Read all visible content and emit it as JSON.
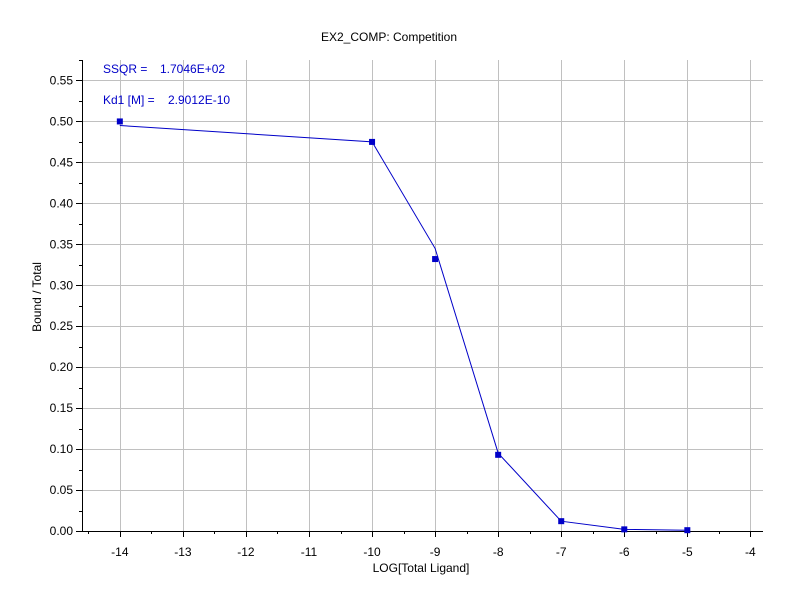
{
  "chart_data": {
    "type": "line",
    "title": "EX2_COMP: Competition",
    "xlabel": "LOG[Total Ligand]",
    "ylabel": "Bound / Total",
    "xlim": [
      -14.6,
      -3.8
    ],
    "ylim": [
      0,
      0.575
    ],
    "x_ticks": [
      -14,
      -13,
      -12,
      -11,
      -10,
      -9,
      -8,
      -7,
      -6,
      -5,
      -4
    ],
    "x_tick_labels": [
      "-14",
      "-13",
      "-12",
      "-11",
      "-10",
      "-9",
      "-8",
      "-7",
      "-6",
      "-5",
      "-4"
    ],
    "y_ticks": [
      0,
      0.05,
      0.1,
      0.15,
      0.2,
      0.25,
      0.3,
      0.35,
      0.4,
      0.45,
      0.5,
      0.55
    ],
    "y_tick_labels": [
      "0.00",
      "0.05",
      "0.10",
      "0.15",
      "0.20",
      "0.25",
      "0.30",
      "0.35",
      "0.40",
      "0.45",
      "0.50",
      "0.55"
    ],
    "grid": true,
    "series": [
      {
        "kind": "points",
        "color": "#0000c8",
        "x": [
          -14,
          -10,
          -9,
          -8,
          -7,
          -6,
          -5
        ],
        "y": [
          0.5,
          0.475,
          0.332,
          0.093,
          0.012,
          0.002,
          0.001
        ]
      },
      {
        "kind": "fit-line",
        "color": "#0000c8",
        "x": [
          -14,
          -10,
          -9,
          -8,
          -7,
          -6,
          -5
        ],
        "y": [
          0.495,
          0.475,
          0.345,
          0.095,
          0.012,
          0.002,
          0.001
        ]
      }
    ],
    "annotations": [
      {
        "label": "SSQR =",
        "value": "1.7046E+02"
      },
      {
        "label": "Kd1 [M] =",
        "value": "2.9012E-10"
      }
    ],
    "colors": {
      "series": "#0000c8",
      "grid": "#c0c0c0",
      "axis": "#000000"
    }
  }
}
